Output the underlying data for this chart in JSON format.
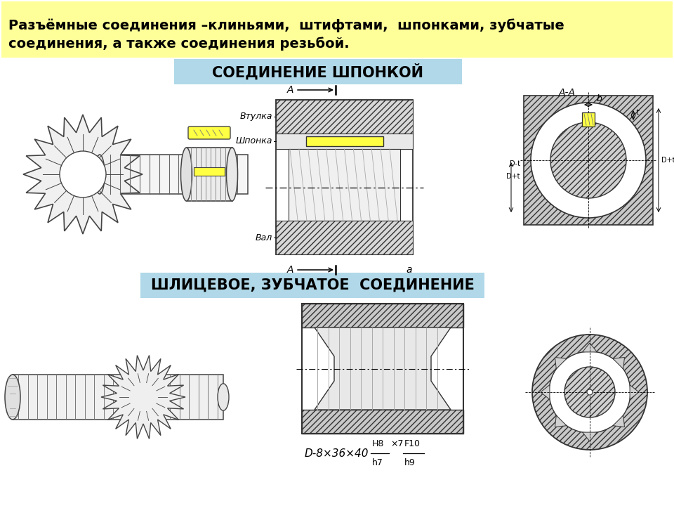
{
  "title_box_color": "#ffff99",
  "title_text_line1": "Разъёмные соединения –клиньями,  штифтами,  шпонками, зубчатые",
  "title_text_line2": "соединения, а также соединения резьбой.",
  "title_fontsize": 14,
  "header1_box_color": "#b0d8e8",
  "header1_text": "СОЕДИНЕНИЕ ШПОНКОЙ",
  "header1_fontsize": 15,
  "header2_box_color": "#b0d8e8",
  "header2_text": "ШЛИЦЕВОЕ, ЗУБЧАТОЕ  СОЕДИНЕНИЕ",
  "header2_fontsize": 15,
  "bg_color": "#ffffff",
  "lc": "#333333",
  "yellow_color": "#ffff44",
  "gray_hatch": "#888888",
  "dark_gray": "#444444"
}
